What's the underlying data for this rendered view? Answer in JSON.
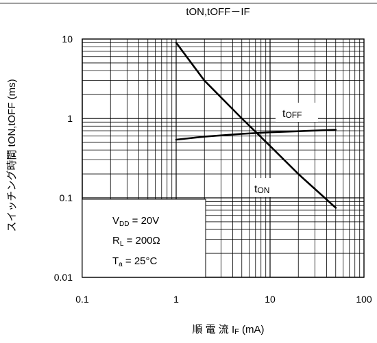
{
  "chart_data": {
    "type": "line",
    "title": "tON,tOFF－IF",
    "xlabel": {
      "prefix": "順 電 流 I",
      "sub": "F",
      "suffix": " (mA)"
    },
    "ylabel": "スイッチング時間 tON,tOFF (ms)",
    "xscale": "log",
    "yscale": "log",
    "xlim": [
      0.1,
      100
    ],
    "ylim": [
      0.01,
      10
    ],
    "grid": true,
    "x_tick_labels": [
      "0.1",
      "1",
      "10",
      "100"
    ],
    "y_tick_labels": [
      "0.01",
      "0.1",
      "1",
      "10"
    ],
    "series": [
      {
        "name": {
          "main": "t",
          "sub": "ON"
        },
        "x": [
          1,
          2,
          5,
          10,
          20,
          50
        ],
        "y": [
          9.0,
          3.0,
          1.0,
          0.45,
          0.2,
          0.075
        ]
      },
      {
        "name": {
          "main": "t",
          "sub": "OFF"
        },
        "x": [
          1,
          2,
          5,
          10,
          20,
          50
        ],
        "y": [
          0.54,
          0.59,
          0.64,
          0.67,
          0.69,
          0.72
        ]
      }
    ],
    "conditions": {
      "vdd": {
        "main": "V",
        "sub": "DD",
        "value": " = 20V"
      },
      "rl": {
        "main": "R",
        "sub": "L",
        "value": " = 200Ω"
      },
      "ta": {
        "main": "T",
        "sub": "a",
        "value": " = 25°C"
      }
    }
  }
}
